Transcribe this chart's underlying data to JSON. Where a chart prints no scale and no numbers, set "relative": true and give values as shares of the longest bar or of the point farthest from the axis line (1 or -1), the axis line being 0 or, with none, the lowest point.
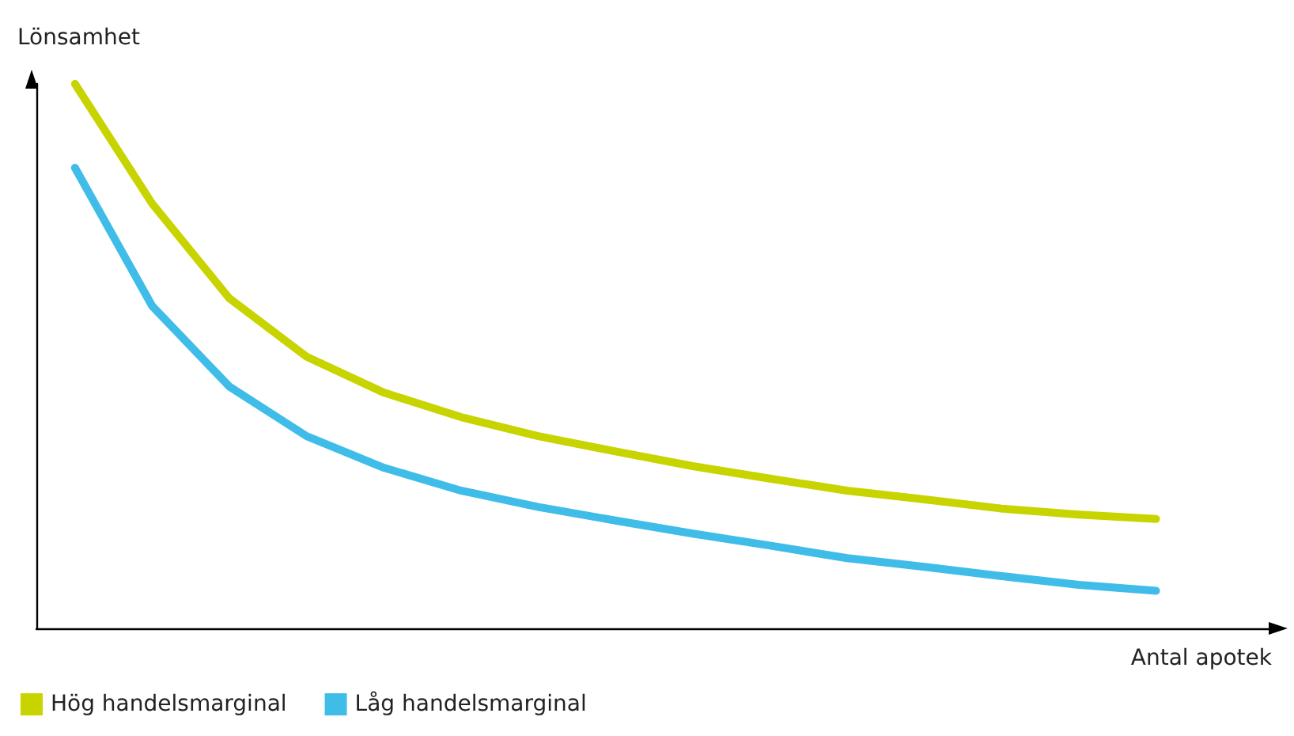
{
  "chart_data": {
    "type": "line",
    "relative": true,
    "xlabel": "Antal apotek",
    "ylabel": "Lönsamhet",
    "legend": "bottom left",
    "marker": "none",
    "categories": [
      null,
      null,
      null,
      null,
      null,
      null,
      null,
      null,
      null,
      null,
      null,
      null,
      null,
      null,
      null,
      null
    ],
    "series": [
      {
        "name": "Hög handelsmarginal",
        "color": "#c8d400",
        "values": [
          1.0,
          0.78,
          0.606,
          0.499,
          0.433,
          0.388,
          0.353,
          0.325,
          0.298,
          0.275,
          0.253,
          0.237,
          0.22,
          0.209,
          0.201,
          null
        ]
      },
      {
        "name": "Låg handelsmarginal",
        "color": "#3fbde8",
        "values": [
          0.846,
          0.592,
          0.444,
          0.353,
          0.295,
          0.253,
          0.223,
          0.198,
          0.174,
          0.152,
          0.129,
          0.113,
          0.096,
          0.08,
          0.069,
          null
        ]
      }
    ]
  }
}
